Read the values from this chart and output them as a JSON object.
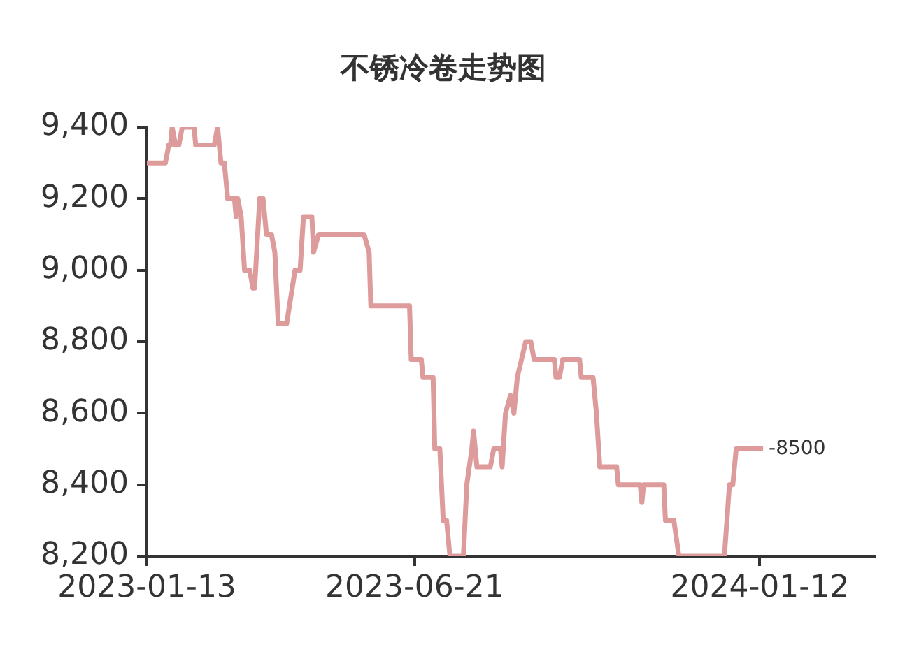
{
  "chart_data": {
    "type": "line",
    "title": "不锈冷卷走势图",
    "x": [
      "2023-01-13",
      "2023-01-24",
      "2023-01-26",
      "2023-01-27",
      "2023-01-28",
      "2023-01-30",
      "2023-02-01",
      "2023-02-03",
      "2023-02-10",
      "2023-02-11",
      "2023-02-22",
      "2023-02-24",
      "2023-02-25",
      "2023-02-26",
      "2023-02-28",
      "2023-03-02",
      "2023-03-06",
      "2023-03-07",
      "2023-03-08",
      "2023-03-10",
      "2023-03-12",
      "2023-03-15",
      "2023-03-17",
      "2023-03-18",
      "2023-03-21",
      "2023-03-23",
      "2023-03-25",
      "2023-03-28",
      "2023-03-30",
      "2023-04-01",
      "2023-04-06",
      "2023-04-11",
      "2023-04-14",
      "2023-04-16",
      "2023-04-21",
      "2023-04-22",
      "2023-04-25",
      "2023-05-22",
      "2023-05-25",
      "2023-05-26",
      "2023-06-18",
      "2023-06-19",
      "2023-06-25",
      "2023-06-26",
      "2023-07-02",
      "2023-07-03",
      "2023-07-06",
      "2023-07-08",
      "2023-07-10",
      "2023-07-12",
      "2023-07-20",
      "2023-07-22",
      "2023-07-25",
      "2023-07-26",
      "2023-07-28",
      "2023-08-05",
      "2023-08-07",
      "2023-08-11",
      "2023-08-12",
      "2023-08-14",
      "2023-08-17",
      "2023-08-19",
      "2023-08-21",
      "2023-08-26",
      "2023-08-29",
      "2023-08-31",
      "2023-09-12",
      "2023-09-13",
      "2023-09-15",
      "2023-09-17",
      "2023-09-27",
      "2023-09-28",
      "2023-10-05",
      "2023-10-07",
      "2023-10-09",
      "2023-10-19",
      "2023-10-20",
      "2023-11-02",
      "2023-11-03",
      "2023-11-04",
      "2023-11-16",
      "2023-11-17",
      "2023-11-22",
      "2023-11-25",
      "2023-12-22",
      "2023-12-25",
      "2023-12-27",
      "2023-12-29",
      "2024-01-14"
    ],
    "series": [
      {
        "color": "#dd9b9b",
        "values": [
          9300,
          9300,
          9350,
          9350,
          9400,
          9350,
          9350,
          9400,
          9400,
          9350,
          9350,
          9400,
          9350,
          9300,
          9300,
          9200,
          9200,
          9150,
          9200,
          9150,
          9000,
          9000,
          8950,
          8950,
          9200,
          9200,
          9100,
          9100,
          9050,
          8850,
          8850,
          9000,
          9000,
          9150,
          9150,
          9050,
          9100,
          9100,
          9050,
          8900,
          8900,
          8750,
          8750,
          8700,
          8700,
          8500,
          8500,
          8300,
          8300,
          8200,
          8200,
          8400,
          8500,
          8550,
          8450,
          8450,
          8500,
          8500,
          8450,
          8600,
          8650,
          8600,
          8700,
          8800,
          8800,
          8750,
          8750,
          8700,
          8700,
          8750,
          8750,
          8700,
          8700,
          8600,
          8450,
          8450,
          8400,
          8400,
          8350,
          8400,
          8400,
          8300,
          8300,
          8200,
          8200,
          8400,
          8400,
          8500,
          8500
        ]
      }
    ],
    "xlim": [
      "2023-01-13",
      "2024-03-20"
    ],
    "xticks": [
      "2023-01-13",
      "2023-06-21",
      "2024-01-12"
    ],
    "ylim": [
      8200,
      9400
    ],
    "yticks": [
      {
        "value": 8200,
        "label": "8,200"
      },
      {
        "value": 8400,
        "label": "8,400"
      },
      {
        "value": 8600,
        "label": "8,600"
      },
      {
        "value": 8800,
        "label": "8,800"
      },
      {
        "value": 9000,
        "label": "9,000"
      },
      {
        "value": 9200,
        "label": "9,200"
      },
      {
        "value": 9400,
        "label": "9,400"
      }
    ],
    "annotations": [
      {
        "text": "-8500",
        "x": "2024-01-14",
        "y": 8500
      }
    ],
    "grid": false,
    "legend": false,
    "marker": "none",
    "line_style": "solid"
  }
}
